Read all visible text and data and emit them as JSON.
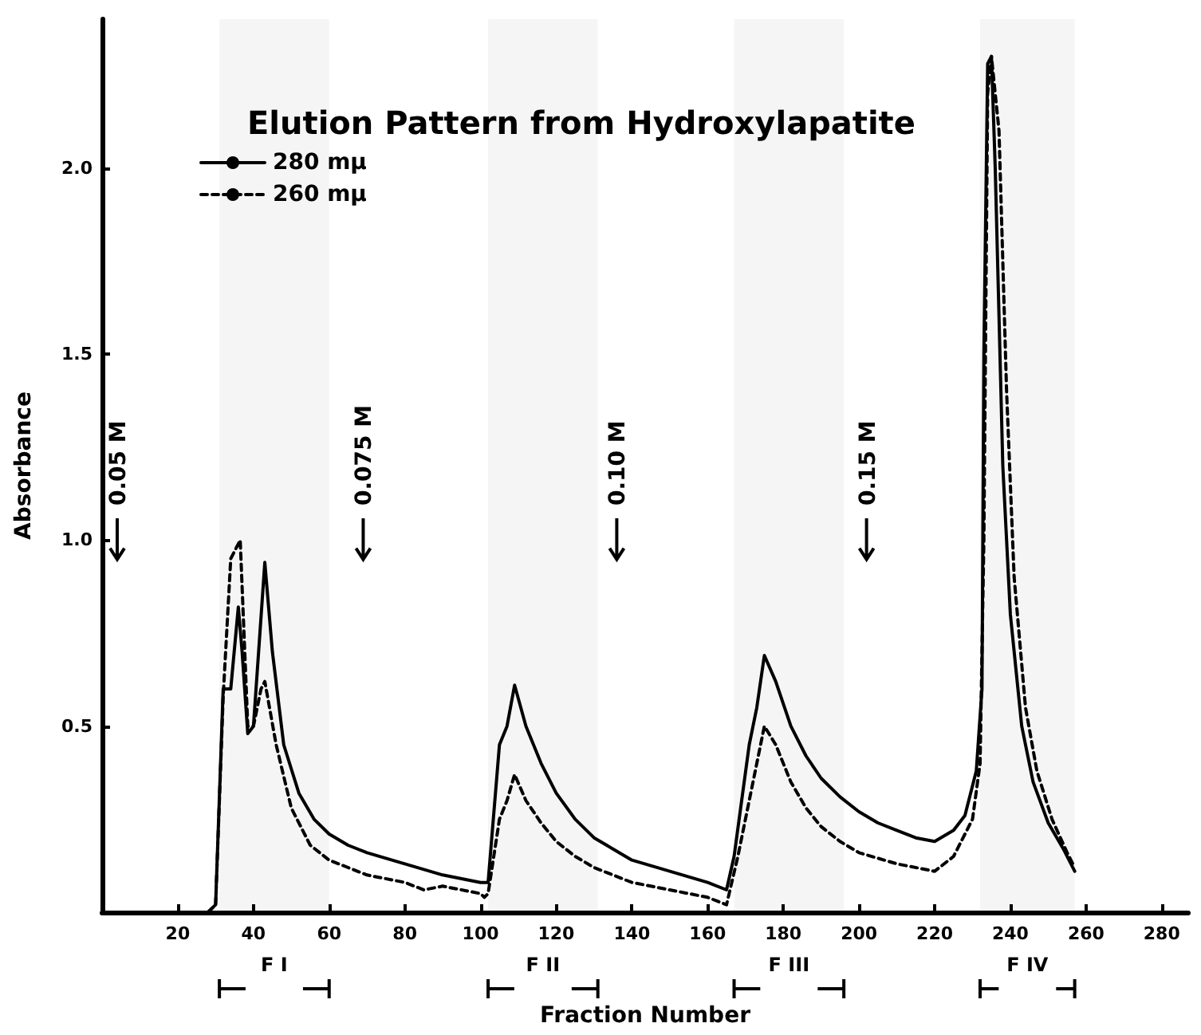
{
  "chart_data": {
    "type": "line",
    "title": "Elution Pattern from Hydroxylapatite",
    "xlabel": "Fraction Number",
    "ylabel": "Absorbance",
    "xlim": [
      0,
      287
    ],
    "xticks": [
      20,
      40,
      60,
      80,
      100,
      120,
      140,
      160,
      180,
      200,
      220,
      240,
      260,
      280
    ],
    "ylim": [
      0,
      2.4
    ],
    "yticks": [
      {
        "value": 0.5,
        "label": "0.5"
      },
      {
        "value": 1,
        "label": "1.0"
      },
      {
        "value": 1.5,
        "label": "1.5"
      },
      {
        "value": 2,
        "label": "2.0"
      }
    ],
    "legend": "top left",
    "marker": "none",
    "series": [
      {
        "name": "280 mμ",
        "color": "#000000",
        "line_style": "solid",
        "x": [
          28,
          30,
          32,
          34,
          36,
          37,
          38.5,
          40,
          43,
          45,
          48,
          52,
          56,
          60,
          65,
          70,
          80,
          90,
          100,
          102,
          105,
          107,
          109,
          112,
          116,
          120,
          125,
          130,
          135,
          140,
          150,
          160,
          165,
          167,
          171,
          173,
          175,
          178,
          182,
          186,
          190,
          195,
          200,
          205,
          210,
          215,
          220,
          225,
          228,
          231,
          232.5,
          233,
          234,
          235,
          236,
          238,
          240,
          243,
          246,
          250,
          254,
          257
        ],
        "values": [
          0,
          0.02,
          0.6,
          0.6,
          0.82,
          0.7,
          0.48,
          0.5,
          0.94,
          0.7,
          0.45,
          0.32,
          0.25,
          0.21,
          0.18,
          0.16,
          0.13,
          0.1,
          0.08,
          0.08,
          0.45,
          0.5,
          0.61,
          0.5,
          0.4,
          0.32,
          0.25,
          0.2,
          0.17,
          0.14,
          0.11,
          0.08,
          0.06,
          0.15,
          0.45,
          0.55,
          0.69,
          0.62,
          0.5,
          0.42,
          0.36,
          0.31,
          0.27,
          0.24,
          0.22,
          0.2,
          0.19,
          0.22,
          0.26,
          0.38,
          0.6,
          1.5,
          2.28,
          2.3,
          2.0,
          1.2,
          0.8,
          0.5,
          0.35,
          0.24,
          0.17,
          0.11
        ]
      },
      {
        "name": "260 mμ",
        "color": "#000000",
        "line_style": "dashed",
        "x": [
          28,
          30,
          32,
          34,
          36.5,
          38.5,
          40,
          42,
          43,
          46,
          50,
          55,
          60,
          65,
          70,
          80,
          85,
          90,
          100,
          101,
          102,
          105,
          107,
          109,
          112,
          116,
          120,
          125,
          130,
          135,
          140,
          150,
          160,
          165,
          168,
          171,
          175,
          178,
          182,
          186,
          190,
          195,
          200,
          210,
          220,
          225,
          230,
          232,
          233,
          234,
          235,
          237,
          239,
          241,
          244,
          247,
          251,
          255,
          257
        ],
        "values": [
          0,
          0.02,
          0.58,
          0.95,
          1.0,
          0.5,
          0.5,
          0.6,
          0.62,
          0.45,
          0.28,
          0.18,
          0.14,
          0.12,
          0.1,
          0.08,
          0.06,
          0.07,
          0.05,
          0.04,
          0.05,
          0.25,
          0.3,
          0.37,
          0.3,
          0.24,
          0.19,
          0.15,
          0.12,
          0.1,
          0.08,
          0.06,
          0.04,
          0.02,
          0.15,
          0.3,
          0.5,
          0.45,
          0.35,
          0.28,
          0.23,
          0.19,
          0.16,
          0.13,
          0.11,
          0.15,
          0.25,
          0.4,
          1.0,
          2.2,
          2.3,
          2.1,
          1.4,
          0.9,
          0.55,
          0.38,
          0.25,
          0.16,
          0.12
        ]
      }
    ],
    "ref_lines": [
      {
        "axis": "x",
        "value": 4,
        "label": "0.05 M"
      },
      {
        "axis": "x",
        "value": 69,
        "label": "0.075 M"
      },
      {
        "axis": "x",
        "value": 136,
        "label": "0.10 M"
      },
      {
        "axis": "x",
        "value": 202,
        "label": "0.15 M"
      }
    ],
    "bands": [
      {
        "axis": "x",
        "from": 31,
        "to": 60,
        "label": "F I"
      },
      {
        "axis": "x",
        "from": 102,
        "to": 131,
        "label": "F II"
      },
      {
        "axis": "x",
        "from": 167,
        "to": 196,
        "label": "F III"
      },
      {
        "axis": "x",
        "from": 232,
        "to": 257,
        "label": "F IV"
      }
    ]
  }
}
